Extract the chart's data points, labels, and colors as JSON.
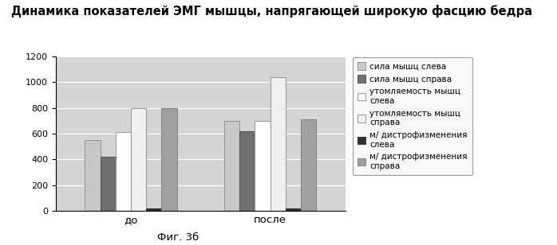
{
  "title": "Динамика показателей ЭМГ мышцы, напрягающей широкую фасцию бедра",
  "categories": [
    "до",
    "после"
  ],
  "series": [
    {
      "label": "сила мышц слева",
      "color": "#c8c8c8",
      "edgecolor": "#888888",
      "values": [
        550,
        700
      ]
    },
    {
      "label": "сила мышц справа",
      "color": "#707070",
      "edgecolor": "#444444",
      "values": [
        420,
        620
      ]
    },
    {
      "label": "утомляемость мышц\nслева",
      "color": "#ffffff",
      "edgecolor": "#888888",
      "values": [
        610,
        700
      ]
    },
    {
      "label": "утомляемость мышц\nсправа",
      "color": "#f0f0f0",
      "edgecolor": "#888888",
      "values": [
        800,
        1040
      ]
    },
    {
      "label": "м/ дистрофизменения\nслева",
      "color": "#303030",
      "edgecolor": "#222222",
      "values": [
        15,
        15
      ]
    },
    {
      "label": "м/ дистрофизменения\nсправа",
      "color": "#a0a0a0",
      "edgecolor": "#777777",
      "values": [
        800,
        710
      ]
    }
  ],
  "ylim": [
    0,
    1200
  ],
  "yticks": [
    0,
    200,
    400,
    600,
    800,
    1000,
    1200
  ],
  "figcaption": "Фиг. 3б",
  "bg_color": "#d4d4d4",
  "legend_fontsize": 7.5,
  "title_fontsize": 10.5,
  "bar_width": 0.055,
  "group_centers": [
    0.25,
    0.75
  ]
}
